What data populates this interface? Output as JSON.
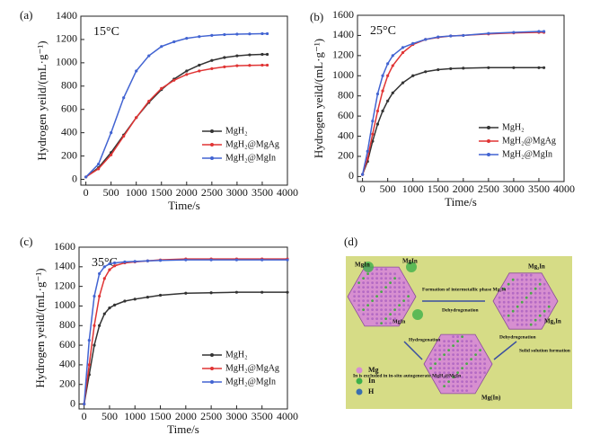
{
  "chart_data": [
    {
      "type": "line",
      "panel_label": "(a)",
      "annotation": "15°C",
      "y_label": "Hydrogen yeild/(mL·g⁻¹)",
      "x_label": "Time/s",
      "x": [
        0,
        250,
        500,
        750,
        1000,
        1250,
        1500,
        1750,
        2000,
        2250,
        2500,
        2750,
        3000,
        3250,
        3500,
        3600
      ],
      "series": [
        {
          "name": "MgH₂",
          "color": "#333333",
          "values": [
            20,
            100,
            230,
            380,
            530,
            660,
            770,
            860,
            930,
            980,
            1020,
            1045,
            1060,
            1068,
            1072,
            1072
          ]
        },
        {
          "name": "MgH₂@MgAg",
          "color": "#e03434",
          "values": [
            20,
            90,
            210,
            370,
            530,
            670,
            780,
            850,
            900,
            930,
            950,
            965,
            975,
            978,
            980,
            980
          ]
        },
        {
          "name": "MgH₂@MgIn",
          "color": "#4264d2",
          "values": [
            20,
            130,
            400,
            700,
            930,
            1060,
            1140,
            1180,
            1210,
            1225,
            1235,
            1242,
            1246,
            1248,
            1250,
            1250
          ]
        }
      ],
      "xlim": [
        -100,
        4000
      ],
      "ylim": [
        -50,
        1400
      ],
      "xticks": [
        0,
        500,
        1000,
        1500,
        2000,
        2500,
        3000,
        3500,
        4000
      ],
      "yticks": [
        0,
        200,
        400,
        600,
        800,
        1000,
        1200,
        1400
      ],
      "legend": "lower right"
    },
    {
      "type": "line",
      "panel_label": "(b)",
      "annotation": "25°C",
      "y_label": "Hydrogen yeild/(mL·g⁻¹)",
      "x_label": "Time/s",
      "x": [
        0,
        100,
        200,
        300,
        400,
        500,
        600,
        800,
        1000,
        1250,
        1500,
        1750,
        2000,
        2500,
        3000,
        3500,
        3600
      ],
      "series": [
        {
          "name": "MgH₂",
          "color": "#333333",
          "values": [
            20,
            150,
            350,
            520,
            650,
            750,
            830,
            930,
            1000,
            1040,
            1060,
            1070,
            1075,
            1080,
            1080,
            1080,
            1080
          ]
        },
        {
          "name": "MgH₂@MgAg",
          "color": "#e03434",
          "values": [
            20,
            180,
            420,
            650,
            850,
            1000,
            1100,
            1230,
            1310,
            1360,
            1380,
            1395,
            1400,
            1415,
            1425,
            1430,
            1430
          ]
        },
        {
          "name": "MgH₂@MgIn",
          "color": "#4264d2",
          "values": [
            20,
            250,
            550,
            820,
            1000,
            1120,
            1200,
            1280,
            1320,
            1360,
            1385,
            1395,
            1400,
            1420,
            1430,
            1440,
            1440
          ]
        }
      ],
      "xlim": [
        -100,
        4000
      ],
      "ylim": [
        -50,
        1600
      ],
      "xticks": [
        0,
        500,
        1000,
        1500,
        2000,
        2500,
        3000,
        3500,
        4000
      ],
      "yticks": [
        0,
        200,
        400,
        600,
        800,
        1000,
        1200,
        1400,
        1600
      ],
      "legend": "lower right"
    },
    {
      "type": "line",
      "panel_label": "(c)",
      "annotation": "35°C",
      "y_label": "Hydrogen yeild/(mL·g⁻¹)",
      "x_label": "Time/s",
      "x": [
        0,
        100,
        200,
        300,
        400,
        500,
        600,
        800,
        1000,
        1250,
        1500,
        2000,
        2500,
        3000,
        3500,
        4000
      ],
      "series": [
        {
          "name": "MgH₂",
          "color": "#333333",
          "values": [
            0,
            300,
            600,
            800,
            920,
            980,
            1010,
            1050,
            1070,
            1090,
            1110,
            1130,
            1135,
            1140,
            1140,
            1140
          ]
        },
        {
          "name": "MgH₂@MgAg",
          "color": "#e03434",
          "values": [
            0,
            400,
            800,
            1100,
            1280,
            1370,
            1410,
            1440,
            1450,
            1460,
            1470,
            1480,
            1480,
            1480,
            1480,
            1480
          ]
        },
        {
          "name": "MgH₂@MgIn",
          "color": "#4264d2",
          "values": [
            0,
            650,
            1100,
            1330,
            1400,
            1430,
            1440,
            1450,
            1455,
            1460,
            1465,
            1470,
            1470,
            1470,
            1470,
            1470
          ]
        }
      ],
      "xlim": [
        -100,
        4000
      ],
      "ylim": [
        -50,
        1600
      ],
      "xticks": [
        0,
        500,
        1000,
        1500,
        2000,
        2500,
        3000,
        3500,
        4000
      ],
      "yticks": [
        0,
        200,
        400,
        600,
        800,
        1000,
        1200,
        1400,
        1600
      ],
      "legend": "lower right"
    }
  ],
  "diagram": {
    "panel_label": "(d)",
    "texts": [
      "MgIn",
      "MgIn",
      "MgIn",
      "Mg₂In",
      "Mg₂In",
      "Mg(In)",
      "Formation of intermetallic phase Mg₂In",
      "Dehydrogenation",
      "Solid solution formation",
      "Dehydrogenation",
      "Hydrogenation",
      "In is excluded in in-situ autogenerate MgH₂@MgIn",
      "Mg",
      "In",
      "H"
    ]
  }
}
